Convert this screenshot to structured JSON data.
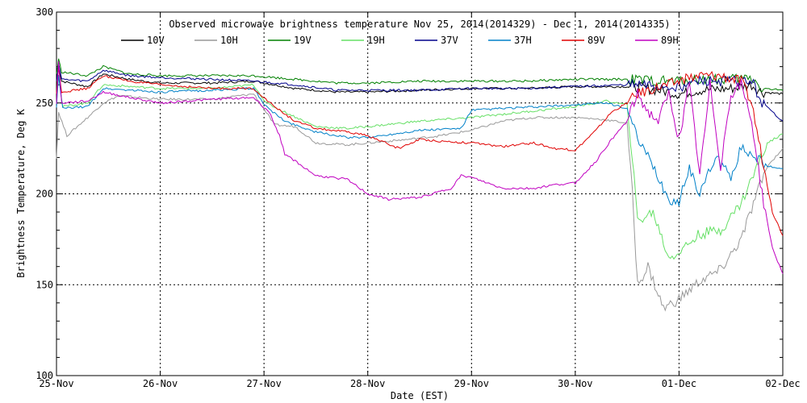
{
  "chart_data": {
    "type": "line",
    "title": "Observed microwave brightness temperature Nov 25, 2014(2014329) - Dec  1, 2014(2014335)",
    "xlabel": "Date (EST)",
    "ylabel": "Brightness Temperature, Deg K",
    "xlim": [
      0,
      7
    ],
    "ylim": [
      100,
      300
    ],
    "x_tick_values": [
      0,
      1,
      2,
      3,
      4,
      5,
      6,
      7
    ],
    "x_tick_labels": [
      "25-Nov",
      "26-Nov",
      "27-Nov",
      "28-Nov",
      "29-Nov",
      "30-Nov",
      "01-Dec",
      "02-Dec"
    ],
    "y_ticks": [
      100,
      150,
      200,
      250,
      300
    ],
    "grid": true,
    "legend_position": "top",
    "series": [
      {
        "name": "10V",
        "color": "#000000",
        "points": [
          [
            0,
            262
          ],
          [
            0.02,
            270
          ],
          [
            0.05,
            262
          ],
          [
            0.3,
            259
          ],
          [
            0.45,
            266
          ],
          [
            0.7,
            263
          ],
          [
            1,
            261
          ],
          [
            1.5,
            261
          ],
          [
            1.9,
            262
          ],
          [
            2.3,
            258
          ],
          [
            2.7,
            256
          ],
          [
            3,
            256
          ],
          [
            3.5,
            257
          ],
          [
            4,
            258
          ],
          [
            4.5,
            258
          ],
          [
            5,
            259
          ],
          [
            5.3,
            259
          ],
          [
            5.55,
            259
          ],
          [
            5.8,
            257
          ],
          [
            6,
            255
          ],
          [
            6.2,
            257
          ],
          [
            6.5,
            258
          ],
          [
            6.7,
            260
          ],
          [
            6.8,
            256
          ],
          [
            7,
            255
          ]
        ]
      },
      {
        "name": "10H",
        "color": "#999999",
        "points": [
          [
            0,
            220
          ],
          [
            0.02,
            245
          ],
          [
            0.1,
            232
          ],
          [
            0.3,
            242
          ],
          [
            0.45,
            250
          ],
          [
            0.6,
            254
          ],
          [
            1,
            252
          ],
          [
            1.5,
            252
          ],
          [
            1.9,
            255
          ],
          [
            2.02,
            245
          ],
          [
            2.1,
            238
          ],
          [
            2.3,
            237
          ],
          [
            2.5,
            228
          ],
          [
            2.8,
            227
          ],
          [
            3,
            228
          ],
          [
            3.4,
            230
          ],
          [
            3.7,
            232
          ],
          [
            4,
            235
          ],
          [
            4.3,
            240
          ],
          [
            4.6,
            242
          ],
          [
            5,
            242
          ],
          [
            5.25,
            241
          ],
          [
            5.5,
            239
          ],
          [
            5.55,
            200
          ],
          [
            5.6,
            150
          ],
          [
            5.7,
            160
          ],
          [
            5.85,
            137
          ],
          [
            6.0,
            142
          ],
          [
            6.2,
            152
          ],
          [
            6.4,
            158
          ],
          [
            6.6,
            175
          ],
          [
            6.75,
            200
          ],
          [
            6.85,
            215
          ],
          [
            7,
            225
          ]
        ]
      },
      {
        "name": "19V",
        "color": "#008000",
        "points": [
          [
            0,
            266
          ],
          [
            0.02,
            274
          ],
          [
            0.05,
            267
          ],
          [
            0.3,
            265
          ],
          [
            0.45,
            270
          ],
          [
            0.7,
            266
          ],
          [
            1,
            265
          ],
          [
            1.5,
            265
          ],
          [
            1.9,
            265
          ],
          [
            2.3,
            263
          ],
          [
            2.7,
            261
          ],
          [
            3,
            261
          ],
          [
            3.5,
            262
          ],
          [
            4,
            262
          ],
          [
            4.5,
            262
          ],
          [
            5,
            263
          ],
          [
            5.5,
            263
          ],
          [
            5.8,
            262
          ],
          [
            6,
            262
          ],
          [
            6.2,
            263
          ],
          [
            6.5,
            263
          ],
          [
            6.7,
            264
          ],
          [
            6.8,
            258
          ],
          [
            7,
            257
          ]
        ]
      },
      {
        "name": "19H",
        "color": "#66e066",
        "points": [
          [
            0,
            250
          ],
          [
            0.02,
            265
          ],
          [
            0.06,
            248
          ],
          [
            0.3,
            250
          ],
          [
            0.45,
            260
          ],
          [
            1,
            258
          ],
          [
            1.5,
            258
          ],
          [
            1.9,
            260
          ],
          [
            2.02,
            250
          ],
          [
            2.2,
            245
          ],
          [
            2.5,
            237
          ],
          [
            2.8,
            236
          ],
          [
            3,
            237
          ],
          [
            3.5,
            240
          ],
          [
            4,
            242
          ],
          [
            4.5,
            245
          ],
          [
            5,
            248
          ],
          [
            5.3,
            251
          ],
          [
            5.5,
            249
          ],
          [
            5.55,
            220
          ],
          [
            5.6,
            185
          ],
          [
            5.75,
            190
          ],
          [
            5.9,
            165
          ],
          [
            6,
            168
          ],
          [
            6.2,
            178
          ],
          [
            6.4,
            180
          ],
          [
            6.6,
            195
          ],
          [
            6.75,
            215
          ],
          [
            6.85,
            228
          ],
          [
            7,
            233
          ]
        ]
      },
      {
        "name": "37V",
        "color": "#00008b",
        "points": [
          [
            0,
            262
          ],
          [
            0.02,
            272
          ],
          [
            0.05,
            263
          ],
          [
            0.3,
            262
          ],
          [
            0.45,
            268
          ],
          [
            0.7,
            265
          ],
          [
            1,
            264
          ],
          [
            1.5,
            263
          ],
          [
            1.9,
            262
          ],
          [
            2.3,
            260
          ],
          [
            2.7,
            257
          ],
          [
            3,
            257
          ],
          [
            3.5,
            257
          ],
          [
            4,
            258
          ],
          [
            4.5,
            258
          ],
          [
            5,
            259
          ],
          [
            5.5,
            260
          ],
          [
            5.8,
            259
          ],
          [
            6,
            259
          ],
          [
            6.2,
            262
          ],
          [
            6.5,
            262
          ],
          [
            6.7,
            262
          ],
          [
            6.8,
            250
          ],
          [
            6.9,
            245
          ],
          [
            7,
            240
          ]
        ]
      },
      {
        "name": "37H",
        "color": "#0080c8",
        "points": [
          [
            0,
            248
          ],
          [
            0.02,
            265
          ],
          [
            0.06,
            247
          ],
          [
            0.3,
            248
          ],
          [
            0.45,
            258
          ],
          [
            1,
            256
          ],
          [
            1.5,
            257
          ],
          [
            1.9,
            258
          ],
          [
            2.02,
            248
          ],
          [
            2.2,
            240
          ],
          [
            2.5,
            234
          ],
          [
            2.8,
            231
          ],
          [
            3,
            231
          ],
          [
            3.5,
            235
          ],
          [
            3.9,
            236
          ],
          [
            4.0,
            246
          ],
          [
            4.3,
            247
          ],
          [
            4.7,
            248
          ],
          [
            5,
            249
          ],
          [
            5.3,
            250
          ],
          [
            5.5,
            247
          ],
          [
            5.55,
            238
          ],
          [
            5.6,
            230
          ],
          [
            5.75,
            215
          ],
          [
            5.9,
            197
          ],
          [
            6,
            195
          ],
          [
            6.1,
            215
          ],
          [
            6.2,
            200
          ],
          [
            6.35,
            220
          ],
          [
            6.5,
            210
          ],
          [
            6.6,
            225
          ],
          [
            6.75,
            220
          ],
          [
            6.85,
            215
          ],
          [
            7,
            214
          ]
        ]
      },
      {
        "name": "89V",
        "color": "#e00000",
        "points": [
          [
            0,
            255
          ],
          [
            0.02,
            270
          ],
          [
            0.05,
            256
          ],
          [
            0.3,
            258
          ],
          [
            0.45,
            265
          ],
          [
            0.7,
            262
          ],
          [
            1,
            260
          ],
          [
            1.5,
            258
          ],
          [
            1.9,
            258
          ],
          [
            2.1,
            248
          ],
          [
            2.3,
            240
          ],
          [
            2.5,
            236
          ],
          [
            2.8,
            234
          ],
          [
            3,
            232
          ],
          [
            3.3,
            225
          ],
          [
            3.5,
            230
          ],
          [
            3.7,
            229
          ],
          [
            4,
            228
          ],
          [
            4.3,
            226
          ],
          [
            4.6,
            228
          ],
          [
            4.8,
            225
          ],
          [
            5,
            224
          ],
          [
            5.2,
            235
          ],
          [
            5.35,
            245
          ],
          [
            5.5,
            250
          ],
          [
            5.6,
            255
          ],
          [
            5.75,
            258
          ],
          [
            5.9,
            260
          ],
          [
            6,
            262
          ],
          [
            6.2,
            265
          ],
          [
            6.4,
            265
          ],
          [
            6.6,
            262
          ],
          [
            6.7,
            250
          ],
          [
            6.8,
            220
          ],
          [
            6.9,
            190
          ],
          [
            7,
            177
          ]
        ]
      },
      {
        "name": "89H",
        "color": "#c000c0",
        "points": [
          [
            0,
            250
          ],
          [
            0.02,
            273
          ],
          [
            0.05,
            250
          ],
          [
            0.3,
            251
          ],
          [
            0.45,
            256
          ],
          [
            0.7,
            253
          ],
          [
            1,
            250
          ],
          [
            1.5,
            252
          ],
          [
            1.9,
            253
          ],
          [
            2.05,
            245
          ],
          [
            2.15,
            232
          ],
          [
            2.2,
            222
          ],
          [
            2.5,
            210
          ],
          [
            2.8,
            208
          ],
          [
            3,
            200
          ],
          [
            3.2,
            197
          ],
          [
            3.5,
            198
          ],
          [
            3.8,
            203
          ],
          [
            3.9,
            210
          ],
          [
            4.0,
            209
          ],
          [
            4.3,
            203
          ],
          [
            4.6,
            203
          ],
          [
            4.8,
            205
          ],
          [
            5,
            206
          ],
          [
            5.2,
            218
          ],
          [
            5.35,
            230
          ],
          [
            5.5,
            240
          ],
          [
            5.6,
            255
          ],
          [
            5.7,
            245
          ],
          [
            5.8,
            240
          ],
          [
            5.9,
            255
          ],
          [
            6.0,
            230
          ],
          [
            6.1,
            260
          ],
          [
            6.2,
            210
          ],
          [
            6.3,
            260
          ],
          [
            6.4,
            215
          ],
          [
            6.5,
            255
          ],
          [
            6.6,
            260
          ],
          [
            6.7,
            240
          ],
          [
            6.8,
            200
          ],
          [
            6.9,
            170
          ],
          [
            7,
            156
          ]
        ]
      }
    ]
  }
}
